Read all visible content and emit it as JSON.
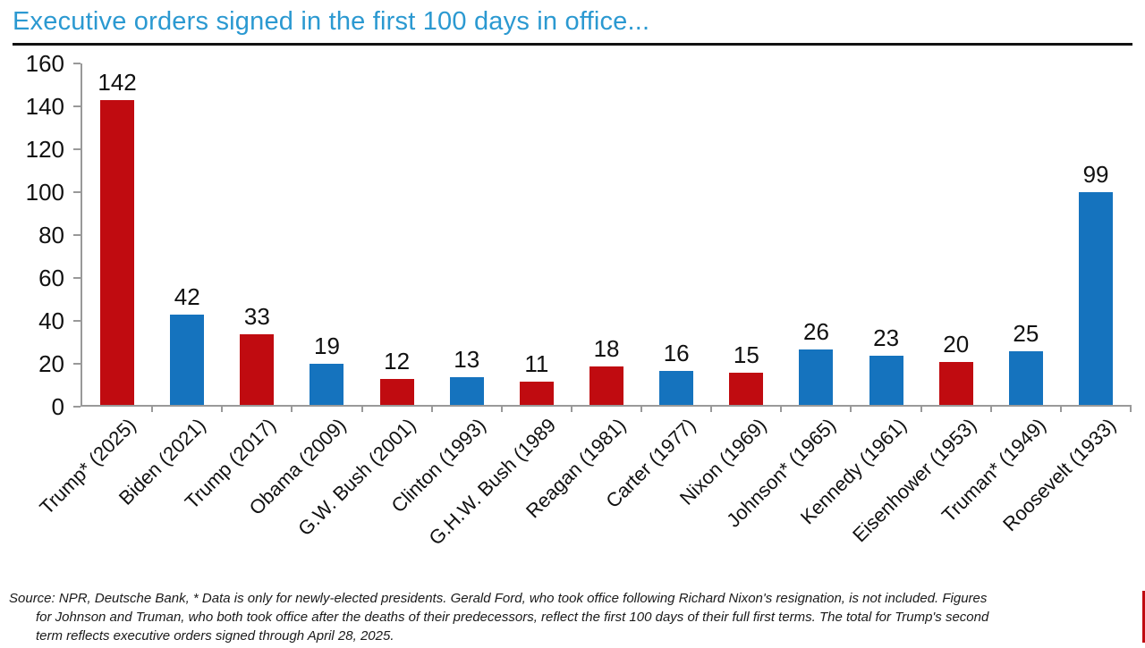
{
  "title": "Executive orders signed in the first 100 days in office...",
  "colors": {
    "title": "#2B99D1",
    "rule": "#111111",
    "republican_bar": "#C00B10",
    "democrat_bar": "#1573BE",
    "axis": "#999999",
    "text": "#111111"
  },
  "chart_data": {
    "type": "bar",
    "title": "Executive orders signed in the first 100 days in office...",
    "categories": [
      "Trump* (2025)",
      "Biden (2021)",
      "Trump (2017)",
      "Obama (2009)",
      "G.W. Bush (2001)",
      "Clinton (1993)",
      "G.H.W. Bush (1989",
      "Reagan (1981)",
      "Carter (1977)",
      "Nixon (1969)",
      "Johnson* (1965)",
      "Kennedy (1961)",
      "Eisenhower (1953)",
      "Truman* (1949)",
      "Roosevelt (1933)"
    ],
    "values": [
      142,
      42,
      33,
      19,
      12,
      13,
      11,
      18,
      16,
      15,
      26,
      23,
      20,
      25,
      99
    ],
    "parties": [
      "R",
      "D",
      "R",
      "D",
      "R",
      "D",
      "R",
      "R",
      "D",
      "R",
      "D",
      "D",
      "R",
      "D",
      "D"
    ],
    "bar_colors": {
      "R": "#C00B10",
      "D": "#1573BE"
    },
    "xlabel": "",
    "ylabel": "",
    "ylim": [
      0,
      160
    ],
    "yticks": [
      0,
      20,
      40,
      60,
      80,
      100,
      120,
      140,
      160
    ],
    "grid": false,
    "legend": "none",
    "value_labels": "above bars",
    "x_tick_rotation_deg": 45
  },
  "footnote": {
    "lines": [
      "Source: NPR, Deutsche Bank,  * Data is only for newly-elected presidents. Gerald Ford, who took office following Richard Nixon's resignation, is not included. Figures",
      "for Johnson and Truman, who both took office after the deaths of their predecessors, reflect the first 100 days of their full first terms. The total for Trump's second",
      "term reflects executive orders signed through April 28, 2025."
    ]
  }
}
